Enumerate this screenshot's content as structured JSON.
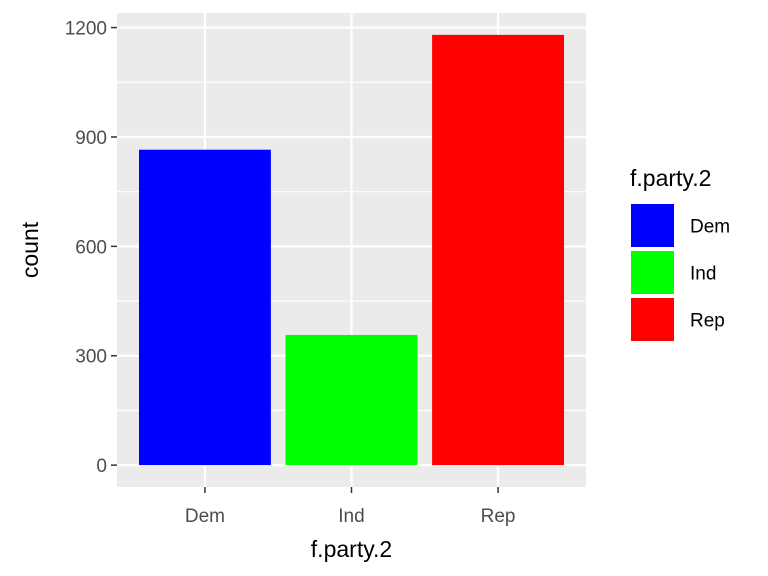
{
  "chart_data": {
    "type": "bar",
    "categories": [
      "Dem",
      "Ind",
      "Rep"
    ],
    "values": [
      865,
      357,
      1180
    ],
    "colors": [
      "#0000ff",
      "#00ff00",
      "#ff0000"
    ],
    "xlabel": "f.party.2",
    "ylabel": "count",
    "ylim": [
      -60,
      1240
    ],
    "yticks": [
      "0",
      "300",
      "600",
      "900",
      "1200"
    ],
    "ytick_values": [
      0,
      300,
      600,
      900,
      1200
    ],
    "grid": true,
    "legend": {
      "title": "f.party.2",
      "placement": "right",
      "entries": [
        "Dem",
        "Ind",
        "Rep"
      ]
    }
  }
}
